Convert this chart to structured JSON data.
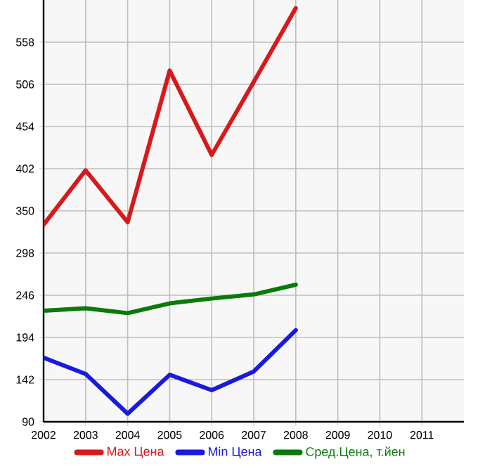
{
  "chart_data": {
    "type": "line",
    "x": [
      2002,
      2003,
      2004,
      2005,
      2006,
      2007,
      2008
    ],
    "series": [
      {
        "name": "Max Цена",
        "color": "#d7191c",
        "values": [
          333,
          400,
          336,
          523,
          419,
          509,
          600
        ]
      },
      {
        "name": "Min Цена",
        "color": "#1a1adc",
        "values": [
          169,
          149,
          100,
          148,
          129,
          152,
          203
        ]
      },
      {
        "name": "Сред.Цена, т.йен",
        "color": "#0a7a0a",
        "values": [
          227,
          230,
          224,
          236,
          242,
          247,
          259
        ]
      }
    ],
    "xlim": [
      2002,
      2012
    ],
    "xticks": [
      2002,
      2003,
      2004,
      2005,
      2006,
      2007,
      2008,
      2009,
      2010,
      2011
    ],
    "ylim": [
      90,
      610
    ],
    "yticks": [
      90,
      142,
      194,
      246,
      298,
      350,
      402,
      454,
      506,
      558
    ],
    "grid": true,
    "legend": "bottom",
    "marker": "none",
    "line_style": "solid"
  }
}
